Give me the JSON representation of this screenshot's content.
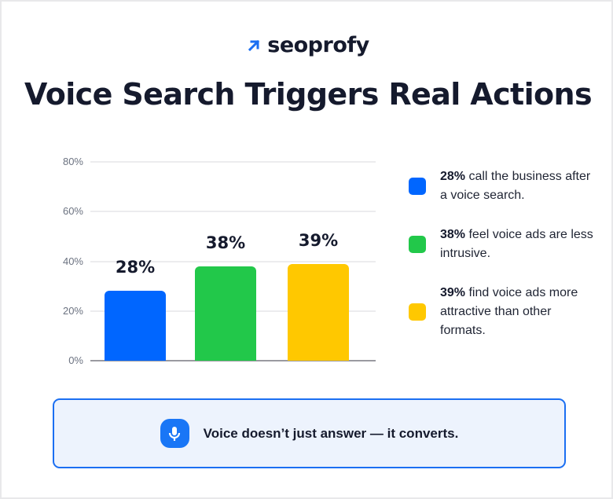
{
  "brand": {
    "name": "seoprofy",
    "icon": "arrow-up-right-icon",
    "accent": "#1b6ff2"
  },
  "title": "Voice Search Triggers Real Actions",
  "chart_data": {
    "type": "bar",
    "title": "Voice Search Triggers Real Actions",
    "categories": [
      "Call the business after a voice search",
      "Feel voice ads are less intrusive",
      "Find voice ads more attractive than other formats"
    ],
    "values": [
      28,
      38,
      39
    ],
    "value_labels": [
      "28%",
      "38%",
      "39%"
    ],
    "colors": [
      "#0066ff",
      "#22c84a",
      "#ffc800"
    ],
    "xlabel": "",
    "ylabel": "",
    "ylim": [
      0,
      80
    ],
    "yticks": [
      "0%",
      "20%",
      "40%",
      "60%",
      "80%"
    ],
    "grid": true,
    "legend_position": "right"
  },
  "legend": [
    {
      "bold": "28%",
      "text": " call the business after a voice search.",
      "color": "#0066ff"
    },
    {
      "bold": "38%",
      "text": " feel voice ads are less intrusive.",
      "color": "#22c84a"
    },
    {
      "bold": "39%",
      "text": " find voice ads more attractive than other formats.",
      "color": "#ffc800"
    }
  ],
  "callout": {
    "icon": "microphone-icon",
    "text": "Voice doesn’t just answer — it converts."
  }
}
